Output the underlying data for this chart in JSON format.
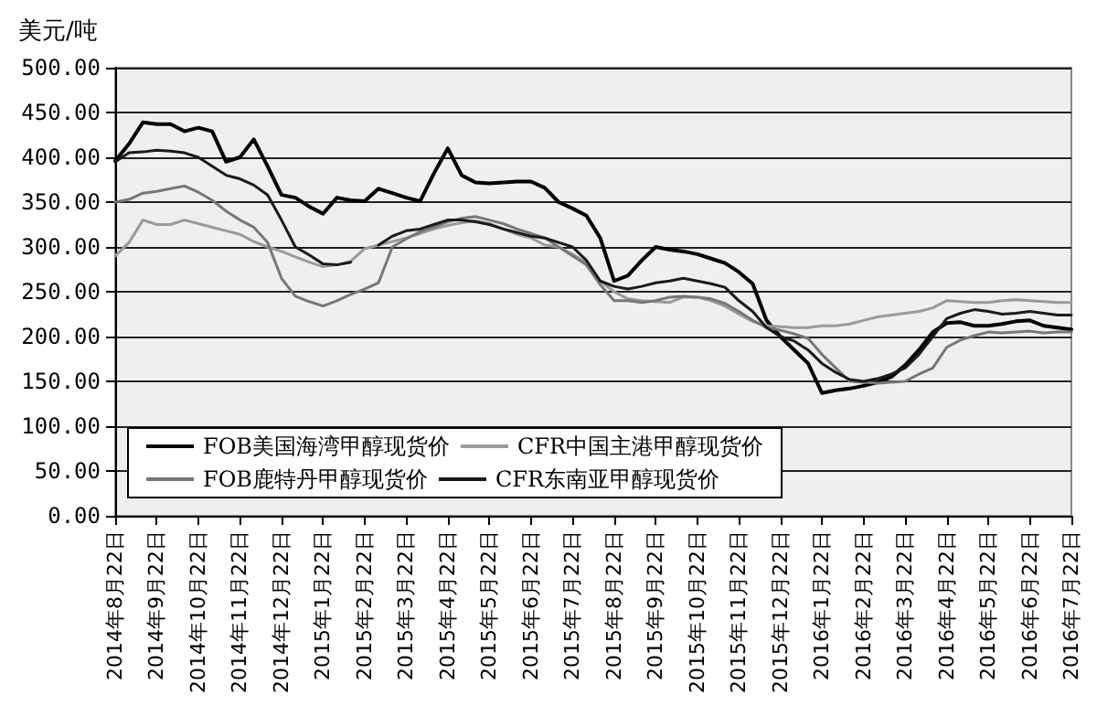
{
  "chart_data": {
    "type": "line",
    "ylabel": "美元/吨",
    "categories": [
      "2014年8月22日",
      null,
      null,
      "2014年9月22日",
      null,
      null,
      "2014年10月22日",
      null,
      null,
      "2014年11月22日",
      null,
      null,
      "2014年12月22日",
      null,
      null,
      "2015年1月22日",
      null,
      null,
      "2015年2月22日",
      null,
      null,
      "2015年3月22日",
      null,
      null,
      "2015年4月22日",
      null,
      null,
      "2015年5月22日",
      null,
      null,
      "2015年6月22日",
      null,
      null,
      "2015年7月22日",
      null,
      null,
      "2015年8月22日",
      null,
      null,
      "2015年9月22日",
      null,
      null,
      "2015年10月22日",
      null,
      null,
      "2015年11月22日",
      null,
      null,
      "2015年12月22日",
      null,
      null,
      "2016年1月22日",
      null,
      null,
      "2016年2月22日",
      null,
      null,
      "2016年3月22日",
      null,
      null,
      "2016年4月22日",
      null,
      null,
      "2016年5月22日",
      null,
      null,
      "2016年6月22日",
      null,
      null,
      "2016年7月22日"
    ],
    "series": [
      {
        "name": "FOB美国海湾甲醇现货价",
        "color": "#000000",
        "values": [
          396,
          415,
          439,
          437,
          437,
          429,
          433,
          429,
          395,
          400,
          420,
          390,
          358,
          355,
          345,
          337,
          355,
          352,
          351,
          365,
          360,
          355,
          351,
          382,
          410,
          380,
          372,
          371,
          372,
          373,
          373,
          366,
          350,
          343,
          335,
          310,
          262,
          268,
          285,
          300,
          297,
          295,
          292,
          287,
          282,
          272,
          259,
          218,
          200,
          185,
          170,
          137,
          140,
          142,
          145,
          149,
          155,
          168,
          185,
          205,
          215,
          216,
          212,
          212,
          214,
          217,
          218,
          212,
          210,
          208
        ]
      },
      {
        "name": "CFR中国主港甲醇现货价",
        "color": "#9a9a9a",
        "values": [
          290,
          305,
          330,
          325,
          325,
          330,
          326,
          322,
          318,
          314,
          306,
          300,
          295,
          289,
          283,
          278,
          280,
          284,
          298,
          302,
          306,
          310,
          315,
          320,
          324,
          327,
          329,
          326,
          320,
          314,
          310,
          302,
          300,
          292,
          282,
          262,
          250,
          242,
          240,
          239,
          238,
          244,
          244,
          240,
          234,
          225,
          217,
          212,
          211,
          210,
          210,
          212,
          212,
          214,
          218,
          222,
          224,
          226,
          228,
          232,
          240,
          239,
          238,
          238,
          240,
          241,
          240,
          239,
          238,
          238
        ]
      },
      {
        "name": "FOB鹿特丹甲醇现货价",
        "color": "#777777",
        "values": [
          350,
          353,
          360,
          362,
          365,
          368,
          361,
          352,
          340,
          330,
          322,
          305,
          265,
          245,
          239,
          234,
          240,
          247,
          253,
          260,
          300,
          309,
          317,
          322,
          328,
          332,
          334,
          330,
          326,
          320,
          315,
          310,
          300,
          290,
          280,
          258,
          240,
          240,
          238,
          240,
          244,
          245,
          244,
          242,
          237,
          228,
          218,
          210,
          207,
          203,
          198,
          180,
          165,
          150,
          149,
          148,
          149,
          150,
          158,
          165,
          188,
          196,
          201,
          205,
          204,
          205,
          206,
          204,
          205,
          205
        ]
      },
      {
        "name": "CFR东南亚甲醇现货价",
        "color": "#1a1a1a",
        "values": [
          395,
          405,
          406,
          408,
          407,
          405,
          400,
          390,
          380,
          376,
          369,
          358,
          330,
          300,
          291,
          281,
          280,
          283,
          null,
          302,
          312,
          318,
          320,
          325,
          330,
          330,
          328,
          325,
          320,
          316,
          312,
          310,
          305,
          300,
          285,
          262,
          256,
          253,
          256,
          260,
          262,
          265,
          262,
          259,
          255,
          240,
          228,
          210,
          200,
          195,
          185,
          170,
          160,
          152,
          150,
          153,
          158,
          165,
          180,
          200,
          220,
          226,
          230,
          228,
          225,
          226,
          228,
          226,
          224,
          224
        ]
      }
    ],
    "ylim": [
      0,
      500
    ],
    "yticks": [
      {
        "value": 0,
        "label": "0.00"
      },
      {
        "value": 50,
        "label": "50.00"
      },
      {
        "value": 100,
        "label": "100.00"
      },
      {
        "value": 150,
        "label": "150.00"
      },
      {
        "value": 200,
        "label": "200.00"
      },
      {
        "value": 250,
        "label": "250.00"
      },
      {
        "value": 300,
        "label": "300.00"
      },
      {
        "value": 350,
        "label": "350.00"
      },
      {
        "value": 400,
        "label": "400.00"
      },
      {
        "value": 450,
        "label": "450.00"
      },
      {
        "value": 500,
        "label": "500.00"
      }
    ],
    "grid": "y",
    "legend": "bottom",
    "marker": "none",
    "line_style": "solid"
  }
}
